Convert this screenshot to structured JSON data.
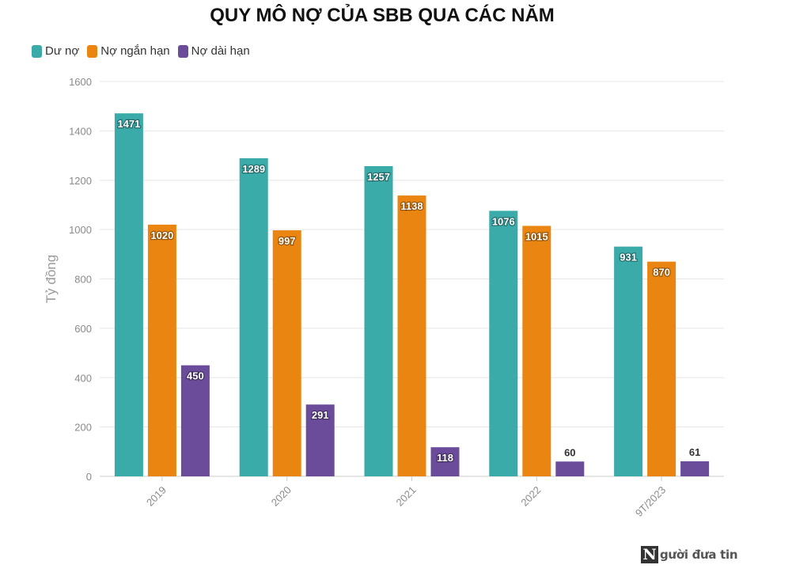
{
  "chart_data": {
    "type": "bar",
    "title": "QUY MÔ NỢ CỦA SBB QUA CÁC NĂM",
    "ylabel": "Tỷ đồng",
    "xlabel": "",
    "ylim": [
      0,
      1600
    ],
    "yticks": [
      0,
      200,
      400,
      600,
      800,
      1000,
      1200,
      1400,
      1600
    ],
    "grid": true,
    "legend_position": "top-left",
    "categories": [
      "2019",
      "2020",
      "2021",
      "2022",
      "9T/2023"
    ],
    "series": [
      {
        "name": "Dư nợ",
        "color": "#3aaba9",
        "values": [
          1471,
          1289,
          1257,
          1076,
          931
        ]
      },
      {
        "name": "Nợ ngắn hạn",
        "color": "#e98510",
        "values": [
          1020,
          997,
          1138,
          1015,
          870
        ]
      },
      {
        "name": "Nợ dài hạn",
        "color": "#6b4c9a",
        "values": [
          450,
          291,
          118,
          60,
          61
        ]
      }
    ]
  },
  "watermark": {
    "letter": "N",
    "text": "gười đưa tin"
  }
}
